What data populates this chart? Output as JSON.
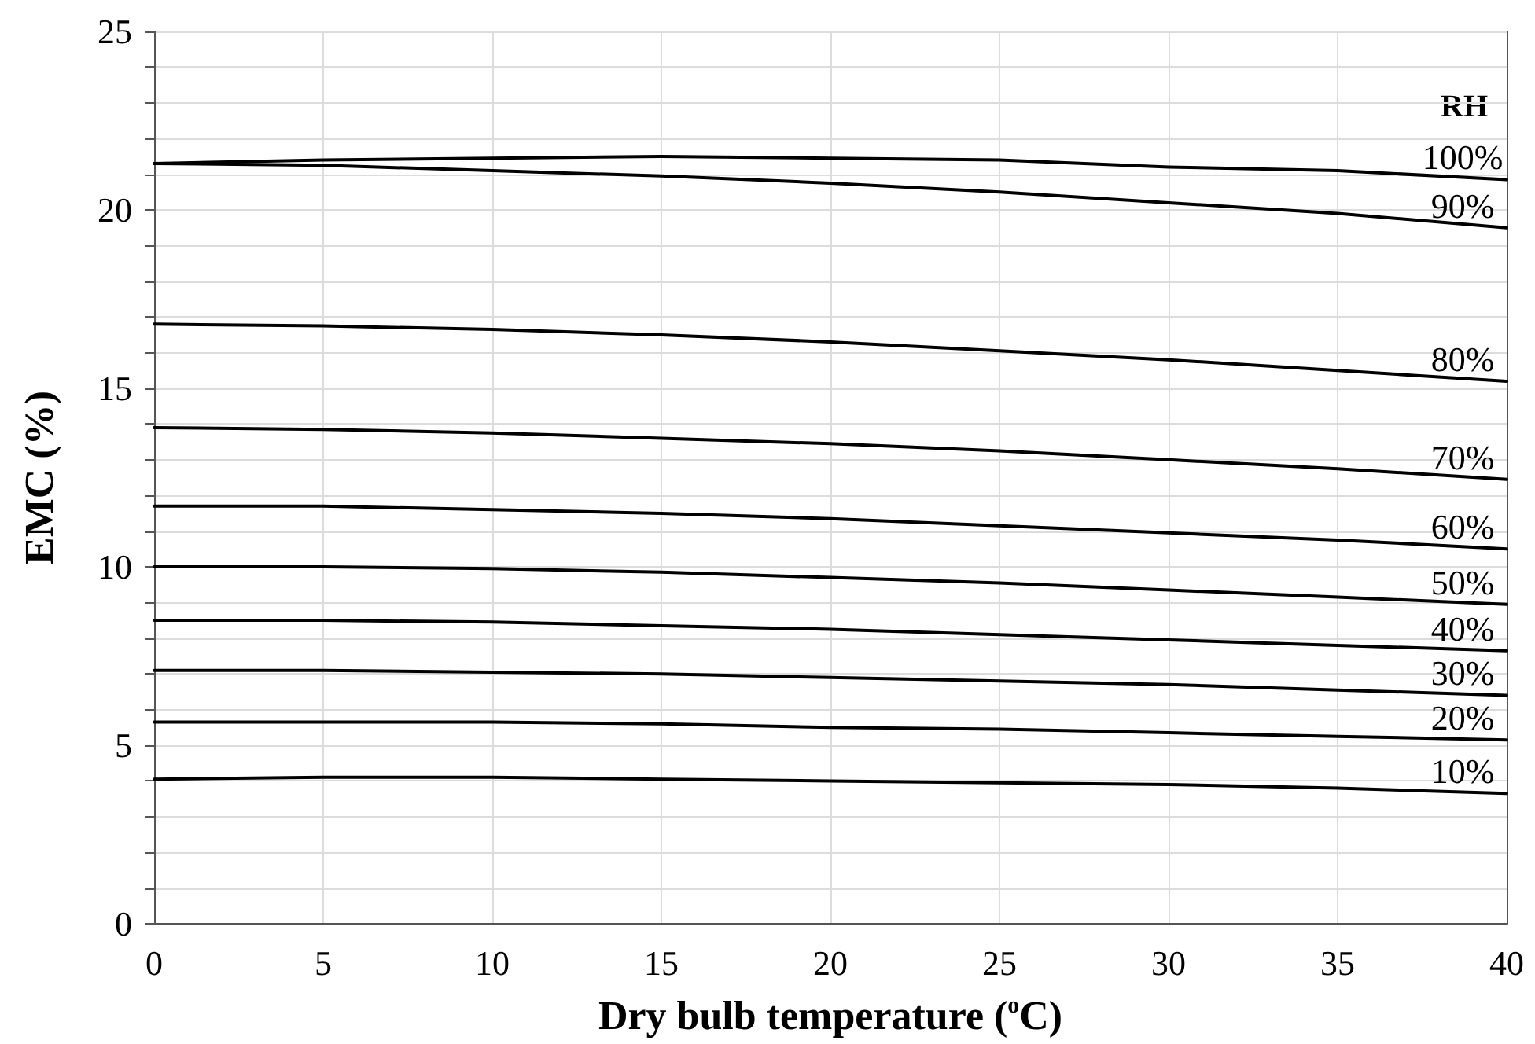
{
  "chart_data": {
    "type": "line",
    "xlabel": "Dry bulb temperature ($^{o}$C)",
    "ylabel": "EMC (%)",
    "legend_title": "RH",
    "x": [
      0,
      5,
      10,
      15,
      20,
      25,
      30,
      35,
      40
    ],
    "xlim": [
      0,
      40
    ],
    "xticks": [
      0,
      5,
      10,
      15,
      20,
      25,
      30,
      35,
      40
    ],
    "ylim": [
      0,
      25
    ],
    "yticks": [
      0,
      {
        "value": 1,
        "label": null
      },
      {
        "value": 2,
        "label": null
      },
      {
        "value": 3,
        "label": null
      },
      {
        "value": 4,
        "label": null
      },
      5,
      {
        "value": 6,
        "label": null
      },
      {
        "value": 7,
        "label": null
      },
      {
        "value": 8,
        "label": null
      },
      {
        "value": 9,
        "label": null
      },
      10,
      {
        "value": 11,
        "label": null
      },
      {
        "value": 12,
        "label": null
      },
      {
        "value": 13,
        "label": null
      },
      {
        "value": 14,
        "label": null
      },
      15,
      {
        "value": 16,
        "label": null
      },
      {
        "value": 17,
        "label": null
      },
      {
        "value": 18,
        "label": null
      },
      {
        "value": 19,
        "label": null
      },
      20,
      {
        "value": 21,
        "label": null
      },
      {
        "value": 22,
        "label": null
      },
      {
        "value": 23,
        "label": null
      },
      {
        "value": 24,
        "label": null
      },
      25
    ],
    "grid": true,
    "legend": false,
    "marker": "none",
    "line_style": "solid",
    "series": [
      {
        "name": "100%",
        "color": "#000000",
        "values": [
          21.3,
          21.4,
          21.45,
          21.5,
          21.45,
          21.4,
          21.2,
          21.1,
          20.85
        ]
      },
      {
        "name": "90%",
        "color": "#000000",
        "values": [
          21.3,
          21.25,
          21.1,
          20.95,
          20.75,
          20.5,
          20.2,
          19.9,
          19.5
        ]
      },
      {
        "name": "80%",
        "color": "#000000",
        "values": [
          16.8,
          16.75,
          16.65,
          16.5,
          16.3,
          16.05,
          15.8,
          15.5,
          15.2
        ]
      },
      {
        "name": "70%",
        "color": "#000000",
        "values": [
          13.9,
          13.85,
          13.75,
          13.6,
          13.45,
          13.25,
          13.0,
          12.75,
          12.45
        ]
      },
      {
        "name": "60%",
        "color": "#000000",
        "values": [
          11.7,
          11.7,
          11.6,
          11.5,
          11.35,
          11.15,
          10.95,
          10.75,
          10.5
        ]
      },
      {
        "name": "50%",
        "color": "#000000",
        "values": [
          10.0,
          10.0,
          9.95,
          9.85,
          9.7,
          9.55,
          9.35,
          9.15,
          8.95
        ]
      },
      {
        "name": "40%",
        "color": "#000000",
        "values": [
          8.5,
          8.5,
          8.45,
          8.35,
          8.25,
          8.1,
          7.95,
          7.8,
          7.65
        ]
      },
      {
        "name": "30%",
        "color": "#000000",
        "values": [
          7.1,
          7.1,
          7.05,
          7.0,
          6.9,
          6.8,
          6.7,
          6.55,
          6.4
        ]
      },
      {
        "name": "20%",
        "color": "#000000",
        "values": [
          5.65,
          5.65,
          5.65,
          5.6,
          5.5,
          5.45,
          5.35,
          5.25,
          5.15
        ]
      },
      {
        "name": "10%",
        "color": "#000000",
        "values": [
          4.05,
          4.1,
          4.1,
          4.05,
          4.0,
          3.95,
          3.9,
          3.8,
          3.65
        ]
      }
    ]
  }
}
